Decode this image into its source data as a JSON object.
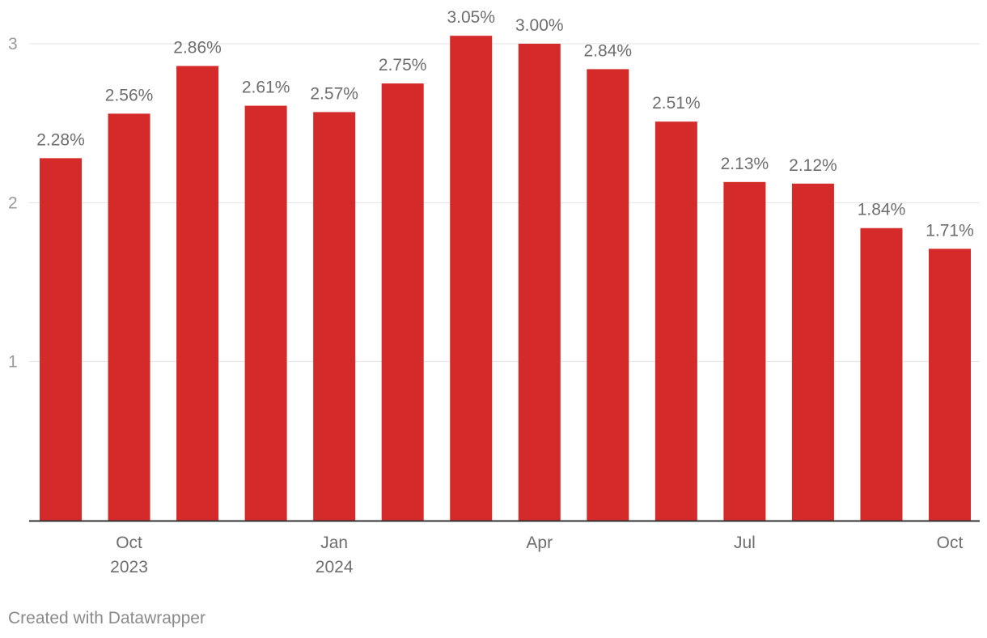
{
  "chart_data": {
    "type": "bar",
    "categories": [
      "Sep 2023",
      "Oct 2023",
      "Nov 2023",
      "Dec 2023",
      "Jan 2024",
      "Feb 2024",
      "Mar 2024",
      "Apr 2024",
      "May 2024",
      "Jun 2024",
      "Jul 2024",
      "Aug 2024",
      "Sep 2024",
      "Oct 2024"
    ],
    "values": [
      2.28,
      2.56,
      2.86,
      2.61,
      2.57,
      2.75,
      3.05,
      3.0,
      2.84,
      2.51,
      2.13,
      2.12,
      1.84,
      1.71
    ],
    "value_labels": [
      "2.28%",
      "2.56%",
      "2.86%",
      "2.61%",
      "2.57%",
      "2.75%",
      "3.05%",
      "3.00%",
      "2.84%",
      "2.51%",
      "2.13%",
      "2.12%",
      "1.84%",
      "1.71%"
    ],
    "x_tick_labels": [
      {
        "index": 1,
        "line1": "Oct",
        "line2": "2023"
      },
      {
        "index": 4,
        "line1": "Jan",
        "line2": "2024"
      },
      {
        "index": 7,
        "line1": "Apr",
        "line2": ""
      },
      {
        "index": 10,
        "line1": "Jul",
        "line2": ""
      },
      {
        "index": 13,
        "line1": "Oct",
        "line2": ""
      }
    ],
    "y_ticks": [
      1,
      2,
      3
    ],
    "ylim": [
      0,
      3.0
    ],
    "grid": true,
    "title": "",
    "xlabel": "",
    "ylabel": "",
    "bar_color": "#d52a2a"
  },
  "footer": {
    "credit": "Created with Datawrapper"
  }
}
